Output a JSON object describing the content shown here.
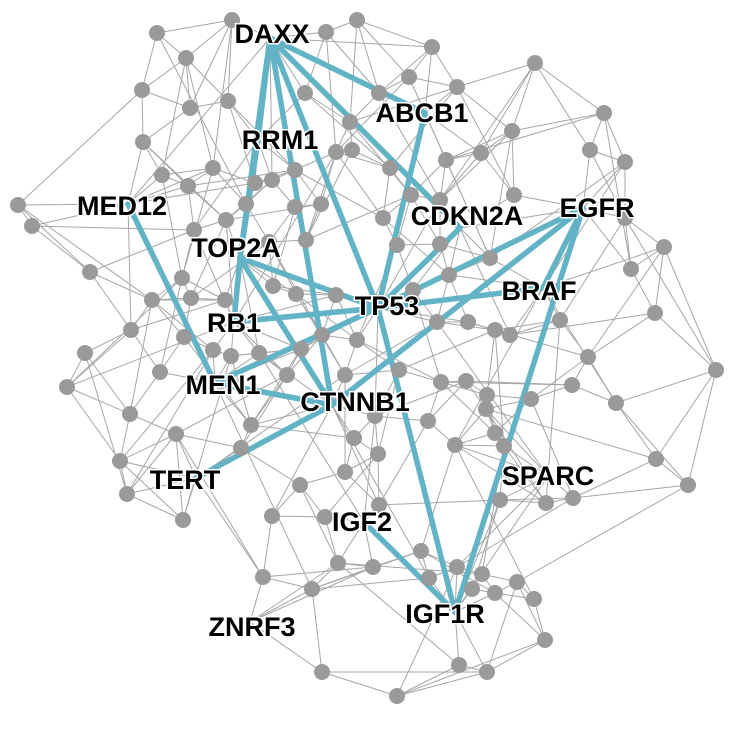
{
  "network": {
    "hubs": [
      {
        "id": "DAXX",
        "label": "DAXX"
      },
      {
        "id": "ABCB1",
        "label": "ABCB1"
      },
      {
        "id": "RRM1",
        "label": "RRM1"
      },
      {
        "id": "MED12",
        "label": "MED12"
      },
      {
        "id": "CDKN2A",
        "label": "CDKN2A"
      },
      {
        "id": "EGFR",
        "label": "EGFR"
      },
      {
        "id": "TOP2A",
        "label": "TOP2A"
      },
      {
        "id": "BRAF",
        "label": "BRAF"
      },
      {
        "id": "TP53",
        "label": "TP53"
      },
      {
        "id": "RB1",
        "label": "RB1"
      },
      {
        "id": "MEN1",
        "label": "MEN1"
      },
      {
        "id": "CTNNB1",
        "label": "CTNNB1"
      },
      {
        "id": "TERT",
        "label": "TERT"
      },
      {
        "id": "SPARC",
        "label": "SPARC"
      },
      {
        "id": "IGF2",
        "label": "IGF2"
      },
      {
        "id": "IGF1R",
        "label": "IGF1R"
      },
      {
        "id": "ZNRF3",
        "label": "ZNRF3"
      }
    ],
    "highlighted_edges": [
      [
        "DAXX",
        "RRM1"
      ],
      [
        "DAXX",
        "TOP2A"
      ],
      [
        "DAXX",
        "ABCB1"
      ],
      [
        "DAXX",
        "CDKN2A"
      ],
      [
        "DAXX",
        "TP53"
      ],
      [
        "DAXX",
        "CTNNB1"
      ],
      [
        "ABCB1",
        "TP53"
      ],
      [
        "RRM1",
        "TOP2A"
      ],
      [
        "MED12",
        "MEN1"
      ],
      [
        "TOP2A",
        "RB1"
      ],
      [
        "TOP2A",
        "TP53"
      ],
      [
        "TOP2A",
        "CTNNB1"
      ],
      [
        "RB1",
        "TP53"
      ],
      [
        "MEN1",
        "TP53"
      ],
      [
        "MEN1",
        "CTNNB1"
      ],
      [
        "CDKN2A",
        "TP53"
      ],
      [
        "EGFR",
        "TP53"
      ],
      [
        "EGFR",
        "BRAF"
      ],
      [
        "EGFR",
        "CTNNB1"
      ],
      [
        "EGFR",
        "IGF1R"
      ],
      [
        "BRAF",
        "TP53"
      ],
      [
        "TP53",
        "IGF1R"
      ],
      [
        "CTNNB1",
        "TERT"
      ],
      [
        "IGF2",
        "IGF1R"
      ]
    ],
    "colors": {
      "highlight_edge": "#62b3c6",
      "background_edge": "#a6a6a6",
      "node": "#9a9a9a",
      "label": "#000000"
    }
  }
}
